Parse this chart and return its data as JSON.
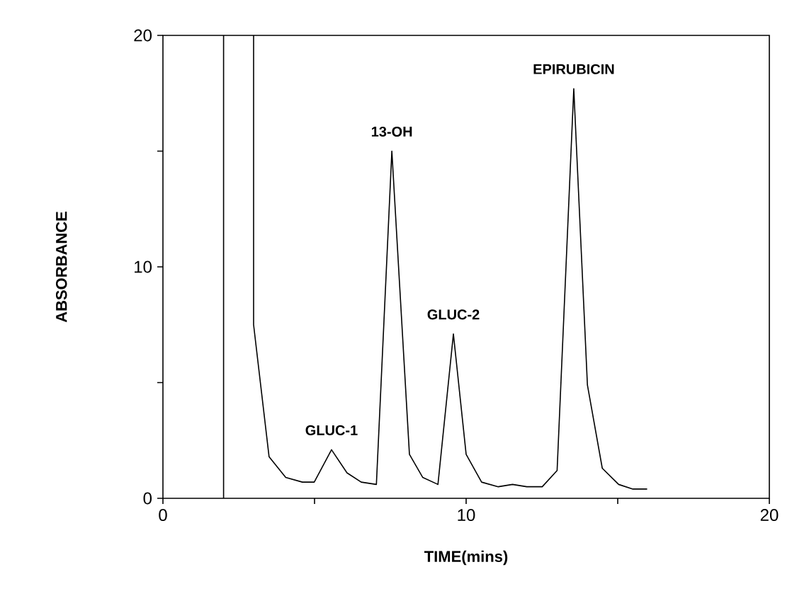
{
  "chart_data": {
    "type": "line",
    "xlabel": "TIME(mins)",
    "ylabel": "ABSORBANCE",
    "x": [
      2.99,
      2.99,
      3.5,
      4.05,
      4.6,
      4.99,
      5.56,
      6.07,
      6.54,
      7.04,
      7.55,
      8.13,
      8.57,
      9.07,
      9.58,
      10.0,
      10.51,
      11.06,
      11.53,
      12.0,
      12.51,
      13.0,
      13.55,
      14.0,
      14.49,
      15.03,
      15.5,
      15.97
    ],
    "values": [
      20,
      7.5,
      1.8,
      0.9,
      0.7,
      0.7,
      2.1,
      1.1,
      0.7,
      0.6,
      15.0,
      1.9,
      0.9,
      0.6,
      7.1,
      1.9,
      0.7,
      0.5,
      0.6,
      0.5,
      0.5,
      1.2,
      17.7,
      4.9,
      1.3,
      0.6,
      0.4,
      0.4
    ],
    "color": "#000000",
    "xlim": [
      0,
      20
    ],
    "ylim": [
      0,
      20
    ],
    "xticks": [
      0,
      {
        "value": 5,
        "label": null
      },
      10,
      {
        "value": 15,
        "label": null
      },
      20
    ],
    "yticks": [
      0,
      {
        "value": 5,
        "label": null
      },
      10,
      {
        "value": 15,
        "label": null
      },
      20
    ],
    "ref_lines": [
      {
        "axis": "x",
        "value": 2,
        "color": "#000000"
      }
    ],
    "annotations": [
      {
        "text": "GLUC-1",
        "x": 5.56,
        "y": 2.1
      },
      {
        "text": "13-OH",
        "x": 7.55,
        "y": 15.0
      },
      {
        "text": "GLUC-2",
        "x": 9.58,
        "y": 7.1
      },
      {
        "text": "EPIRUBICIN",
        "x": 13.55,
        "y": 17.7
      }
    ],
    "grid": false,
    "marker": "none",
    "line_style": "solid"
  }
}
